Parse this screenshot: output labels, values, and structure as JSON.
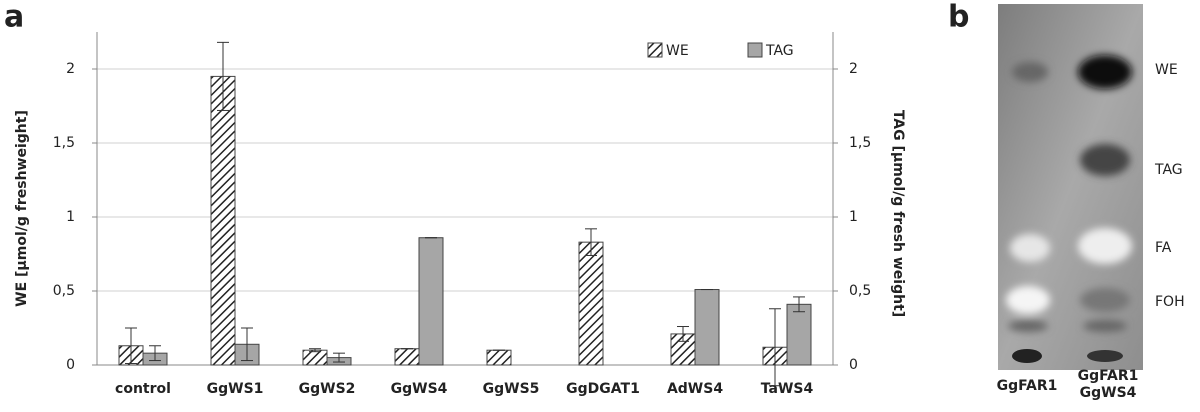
{
  "chart_data": {
    "type": "bar",
    "categories": [
      "control",
      "GgWS1",
      "GgWS2",
      "GgWS4",
      "GgWS5",
      "GgDGAT1",
      "AdWS4",
      "TaWS4"
    ],
    "series": [
      {
        "name": "WE",
        "color": "#222222",
        "pattern": "hatch",
        "values": [
          0.13,
          1.95,
          0.1,
          0.11,
          0.1,
          0.83,
          0.21,
          0.12
        ],
        "errors": [
          0.12,
          0.23,
          0.01,
          0,
          0,
          0.09,
          0.05,
          0.26
        ]
      },
      {
        "name": "TAG",
        "color": "#a6a6a6",
        "axis": "y2",
        "values": [
          0.08,
          0.14,
          0.05,
          0.86,
          0,
          0,
          0.51,
          0.41
        ],
        "errors": [
          0.05,
          0.11,
          0.03,
          0,
          0,
          0,
          0,
          0.05
        ]
      }
    ],
    "ylabel": "WE [µmol/g freshweight]",
    "y2label": "TAG [µmol/g fresh weight]",
    "ylim": [
      0,
      2.25
    ],
    "yticks": [
      0,
      {
        "value": 0.5,
        "label": "0,5"
      },
      1,
      {
        "value": 1.5,
        "label": "1,5"
      },
      2
    ],
    "y2lim": [
      0,
      2.25
    ],
    "y2ticks": [
      0,
      {
        "value": 0.5,
        "label": "0,5"
      },
      1,
      {
        "value": 1.5,
        "label": "1,5"
      },
      2
    ],
    "grid": true,
    "legend": "upper right"
  },
  "panel_labels": [
    "a",
    "b"
  ],
  "tlc": {
    "spots": [
      "WE",
      "TAG",
      "FA",
      "FOH"
    ],
    "lanes": [
      "GgFAR1",
      "GgFAR1 GgWS4"
    ]
  }
}
